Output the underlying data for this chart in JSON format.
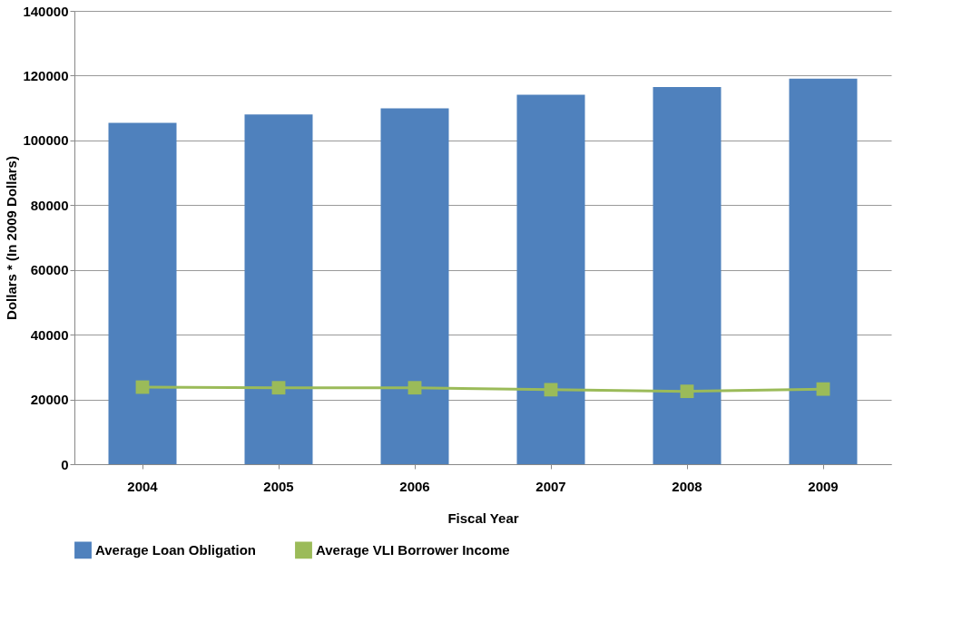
{
  "chart_data": {
    "type": "bar",
    "xlabel": "Fiscal Year",
    "ylabel": "Dollars * (In 2009 Dollars)",
    "categories": [
      "2004",
      "2005",
      "2006",
      "2007",
      "2008",
      "2009"
    ],
    "series": [
      {
        "name": "Average Loan Obligation",
        "color": "#4f81bd",
        "values": [
          105400,
          108000,
          109900,
          114100,
          116500,
          119100
        ]
      },
      {
        "name": "Average VLI Borrower Income",
        "color": "#9bbb59",
        "type": "line",
        "marker": "square",
        "values": [
          23800,
          23600,
          23600,
          23000,
          22500,
          23200
        ]
      }
    ],
    "ylim": [
      0,
      140000
    ],
    "yticks": [
      0,
      20000,
      40000,
      60000,
      80000,
      100000,
      120000,
      140000
    ],
    "grid": "y",
    "legend": "bottom"
  }
}
